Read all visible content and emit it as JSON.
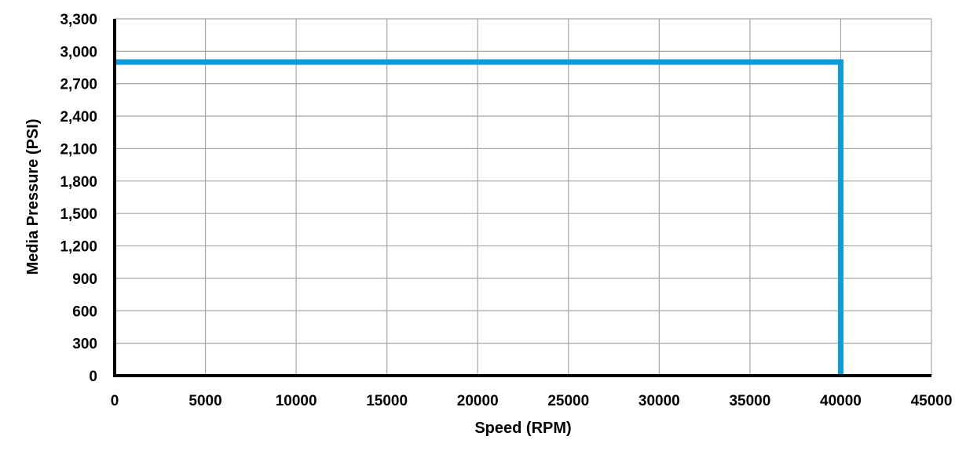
{
  "chart_data": {
    "type": "line",
    "title": "",
    "xlabel": "Speed (RPM)",
    "ylabel": "Media Pressure (PSI)",
    "xlim": [
      0,
      45000
    ],
    "ylim": [
      0,
      3300
    ],
    "x_ticks": [
      0,
      5000,
      10000,
      15000,
      20000,
      25000,
      30000,
      35000,
      40000,
      45000
    ],
    "x_tick_labels": [
      "0",
      "5000",
      "10000",
      "15000",
      "20000",
      "25000",
      "30000",
      "35000",
      "40000",
      "45000"
    ],
    "y_ticks": [
      0,
      300,
      600,
      900,
      1200,
      1500,
      1800,
      2100,
      2400,
      2700,
      3000,
      3300
    ],
    "y_tick_labels": [
      "0",
      "300",
      "600",
      "900",
      "1,200",
      "1,500",
      "1,800",
      "2,100",
      "2,400",
      "2,700",
      "3,000",
      "3,300"
    ],
    "grid": true,
    "legend": "none",
    "series": [
      {
        "color": "#0f9bd7",
        "x": [
          0,
          40000,
          40000
        ],
        "y": [
          2900,
          2900,
          0
        ]
      }
    ]
  }
}
